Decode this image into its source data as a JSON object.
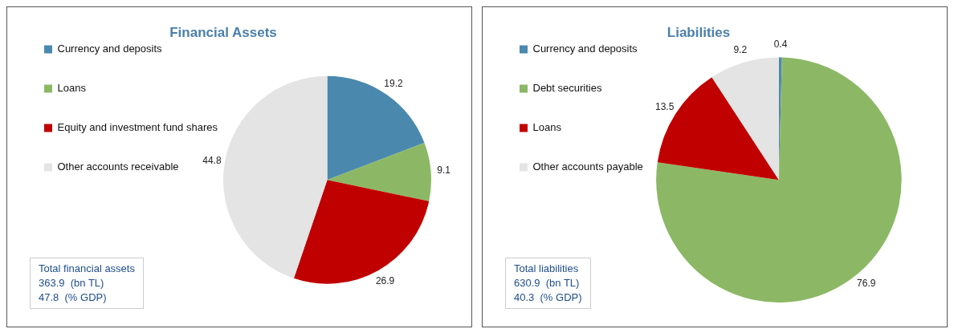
{
  "chart_data": [
    {
      "type": "pie",
      "title": "Financial Assets",
      "categories": [
        "Currency and deposits",
        "Loans",
        "Equity and investment fund shares",
        "Other accounts receivable"
      ],
      "values": [
        19.2,
        9.1,
        26.9,
        44.8
      ],
      "colors": [
        "#4a89ad",
        "#8cb865",
        "#c00000",
        "#e4e4e4"
      ],
      "data_labels": true,
      "legend": "left",
      "annotations": [
        "Total financial assets",
        "363.9  (bn TL)",
        "47.8  (% GDP)"
      ]
    },
    {
      "type": "pie",
      "title": "Liabilities",
      "categories": [
        "Currency and deposits",
        "Debt securities",
        "Loans",
        "Other accounts payable"
      ],
      "values": [
        0.4,
        76.9,
        13.5,
        9.2
      ],
      "colors": [
        "#4a89ad",
        "#8cb865",
        "#c00000",
        "#e4e4e4"
      ],
      "data_labels": true,
      "legend": "left",
      "annotations": [
        "Total liabilities",
        "630.9  (bn TL)",
        "40.3  (% GDP)"
      ]
    }
  ]
}
